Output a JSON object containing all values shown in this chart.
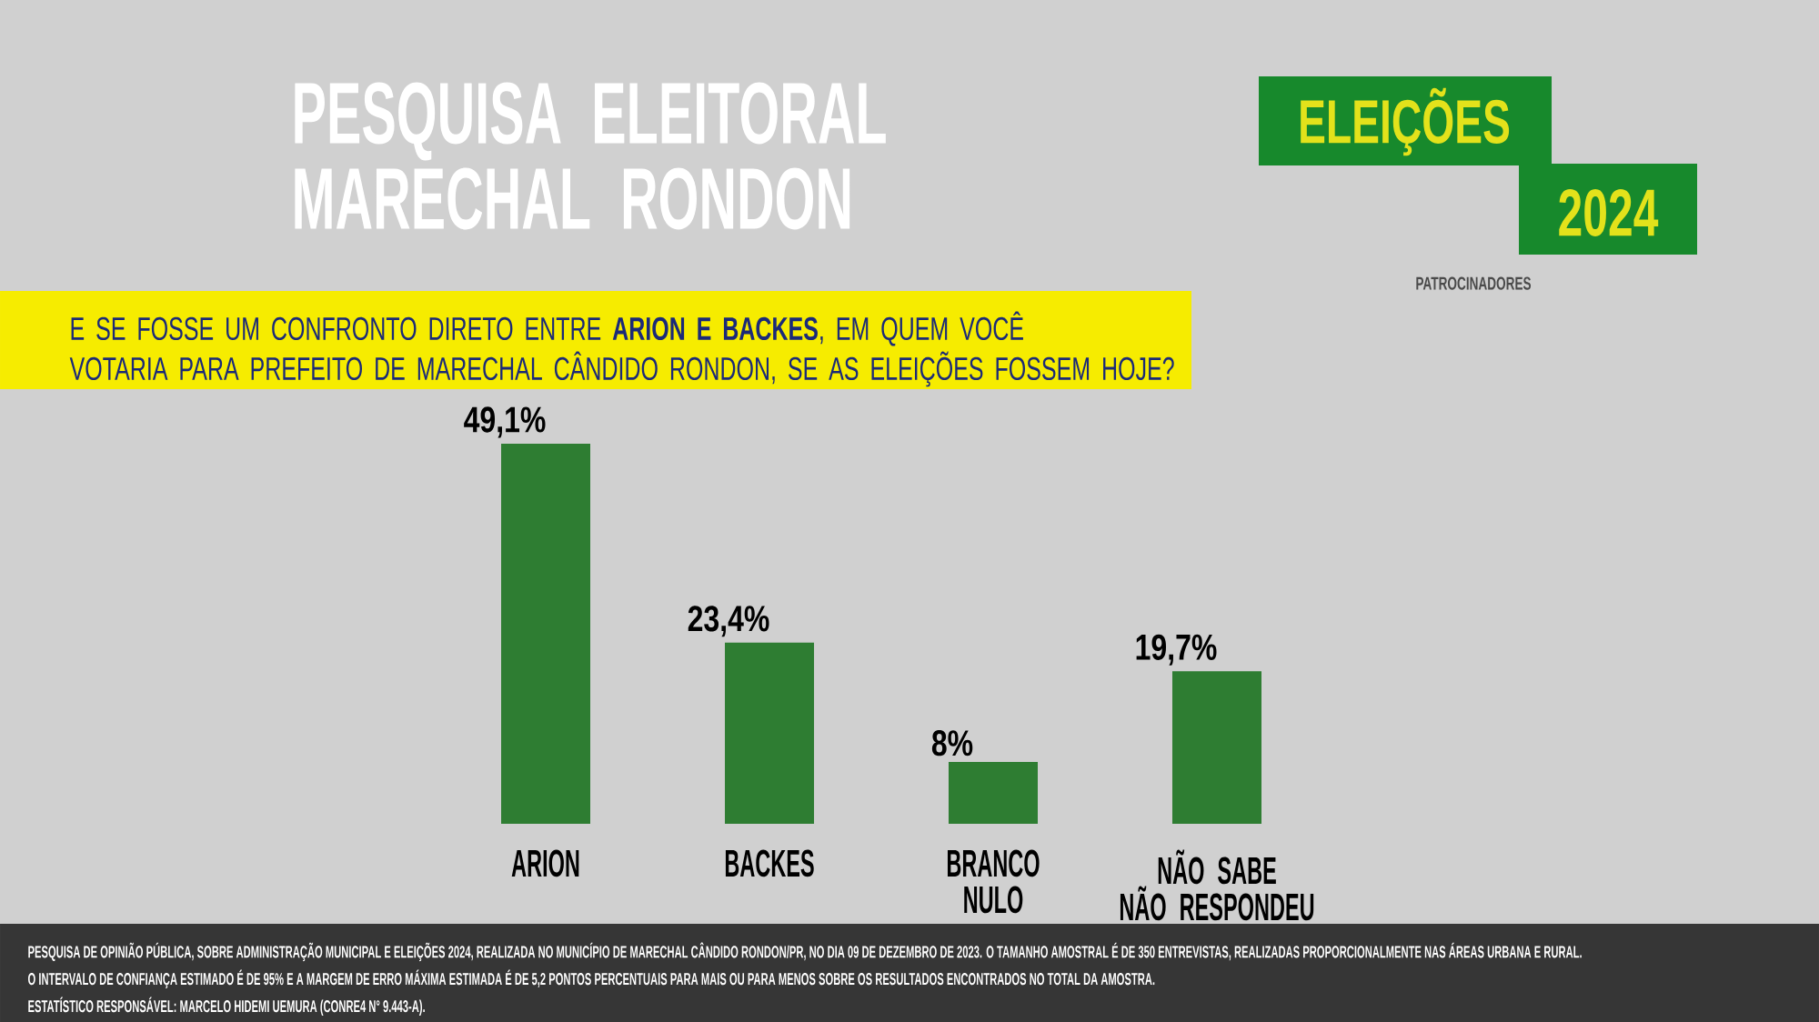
{
  "chart_data": {
    "type": "bar",
    "title": "PESQUISA ELEITORAL\nMARECHAL RONDON",
    "subtitle": "E SE FOSSE UM CONFRONTO DIRETO ENTRE **ARION E BACKES**, EM QUEM VOCÊ\nVOTARIA PARA PREFEITO DE MARECHAL CÂNDIDO RONDON, SE AS ELEIÇÕES FOSSEM HOJE?",
    "categories": [
      "ARION",
      "BACKES",
      "BRANCO\nNULO",
      "NÃO SABE\nNÃO RESPONDEU"
    ],
    "values": [
      49.1,
      23.4,
      8,
      19.7
    ],
    "value_labels": [
      "49,1%",
      "23,4%",
      "8%",
      "19,7%"
    ],
    "color": "#2e7d32",
    "tick_labels": "x",
    "annotations": [
      "ELEIÇÕES",
      "2024",
      "PATROCINADORES",
      "PESQUISA DE OPINIÃO PÚBLICA, SOBRE ADMINISTRAÇÃO MUNICIPAL E ELEIÇÕES 2024, REALIZADA NO MUNICÍPIO DE MARECHAL CÂNDIDO RONDON/PR, NO DIA 09 DE DEZEMBRO DE 2023. O TAMANHO AMOSTRAL É DE 350 ENTREVISTAS, REALIZADAS PROPORCIONALMENTE NAS ÁREAS URBANA E RURAL.",
      "O INTERVALO DE CONFIANÇA ESTIMADO É DE 95% E A MARGEM DE ERRO MÁXIMA ESTIMADA É DE 5,2 PONTOS PERCENTUAIS PARA MAIS OU PARA MENOS SOBRE OS RESULTADOS ENCONTRADOS NO TOTAL DA AMOSTRA.",
      "ESTATÍSTICO RESPONSÁVEL: MARCELO HIDEMI UEMURA (CONRE4 N° 9.443-A)."
    ]
  }
}
